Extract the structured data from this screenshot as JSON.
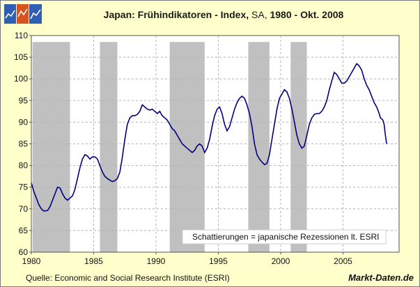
{
  "header": {
    "title_main": "Japan: Frühindikatoren - Index,",
    "title_sa": " SA,",
    "title_rest": " 1980 - Okt. 2008"
  },
  "footer": {
    "source": "Quelle:  Economic and Social Research Institute  (ESRI)",
    "brand": "Markt-Daten.de"
  },
  "colors": {
    "background": "#FFFFCC",
    "plot_background": "#FFFFFF",
    "recession": "#C0C0C0",
    "line": "#000080",
    "grid": "#B4B4B4"
  },
  "chart_data": {
    "type": "line",
    "title": "Japan: Frühindikatoren - Index, SA, 1980 - Okt. 2008",
    "xlabel": "",
    "ylabel": "",
    "xlim": [
      1980,
      2009.5
    ],
    "ylim": [
      60,
      110
    ],
    "x_ticks": [
      1980,
      1985,
      1990,
      1995,
      2000,
      2005
    ],
    "y_ticks": [
      60,
      65,
      70,
      75,
      80,
      85,
      90,
      95,
      100,
      105,
      110
    ],
    "grid": true,
    "annotation": "Schattierungen = japanische Rezessionen lt. ESRI",
    "recessions": [
      {
        "start": 1980.1,
        "end": 1983.1
      },
      {
        "start": 1985.5,
        "end": 1986.9
      },
      {
        "start": 1991.1,
        "end": 1993.9
      },
      {
        "start": 1997.4,
        "end": 1999.1
      },
      {
        "start": 2000.8,
        "end": 2002.1
      }
    ],
    "series": [
      {
        "values": [
          [
            1980.0,
            76.0
          ],
          [
            1980.2,
            74.0
          ],
          [
            1980.4,
            72.5
          ],
          [
            1980.6,
            71.0
          ],
          [
            1980.8,
            70.0
          ],
          [
            1981.0,
            69.5
          ],
          [
            1981.3,
            69.6
          ],
          [
            1981.5,
            70.5
          ],
          [
            1981.7,
            72.0
          ],
          [
            1981.9,
            73.5
          ],
          [
            1982.1,
            75.0
          ],
          [
            1982.3,
            74.8
          ],
          [
            1982.5,
            73.5
          ],
          [
            1982.7,
            72.5
          ],
          [
            1982.9,
            72.0
          ],
          [
            1983.1,
            72.5
          ],
          [
            1983.3,
            73.0
          ],
          [
            1983.5,
            74.5
          ],
          [
            1983.7,
            77.0
          ],
          [
            1983.9,
            79.5
          ],
          [
            1984.1,
            81.5
          ],
          [
            1984.3,
            82.5
          ],
          [
            1984.5,
            82.2
          ],
          [
            1984.7,
            81.5
          ],
          [
            1984.9,
            82.0
          ],
          [
            1985.1,
            82.0
          ],
          [
            1985.3,
            81.5
          ],
          [
            1985.5,
            80.0
          ],
          [
            1985.7,
            78.5
          ],
          [
            1985.9,
            77.5
          ],
          [
            1986.1,
            77.0
          ],
          [
            1986.3,
            76.6
          ],
          [
            1986.5,
            76.3
          ],
          [
            1986.7,
            76.5
          ],
          [
            1986.9,
            77.0
          ],
          [
            1987.1,
            78.5
          ],
          [
            1987.3,
            82.0
          ],
          [
            1987.5,
            86.0
          ],
          [
            1987.7,
            89.5
          ],
          [
            1987.9,
            91.0
          ],
          [
            1988.1,
            91.5
          ],
          [
            1988.3,
            91.5
          ],
          [
            1988.5,
            91.8
          ],
          [
            1988.7,
            92.5
          ],
          [
            1988.9,
            94.0
          ],
          [
            1989.1,
            93.5
          ],
          [
            1989.3,
            93.0
          ],
          [
            1989.5,
            92.8
          ],
          [
            1989.7,
            93.0
          ],
          [
            1989.9,
            92.5
          ],
          [
            1990.1,
            92.0
          ],
          [
            1990.3,
            92.5
          ],
          [
            1990.5,
            91.5
          ],
          [
            1990.7,
            91.0
          ],
          [
            1990.9,
            90.5
          ],
          [
            1991.1,
            89.5
          ],
          [
            1991.3,
            88.5
          ],
          [
            1991.5,
            88.0
          ],
          [
            1991.7,
            87.0
          ],
          [
            1991.9,
            86.0
          ],
          [
            1992.1,
            85.0
          ],
          [
            1992.3,
            84.5
          ],
          [
            1992.5,
            84.0
          ],
          [
            1992.7,
            83.5
          ],
          [
            1992.9,
            83.0
          ],
          [
            1993.1,
            83.5
          ],
          [
            1993.3,
            84.5
          ],
          [
            1993.5,
            85.0
          ],
          [
            1993.7,
            84.5
          ],
          [
            1993.9,
            83.0
          ],
          [
            1994.1,
            84.0
          ],
          [
            1994.3,
            86.0
          ],
          [
            1994.5,
            89.0
          ],
          [
            1994.7,
            91.5
          ],
          [
            1994.9,
            93.0
          ],
          [
            1995.1,
            93.5
          ],
          [
            1995.3,
            92.0
          ],
          [
            1995.5,
            89.5
          ],
          [
            1995.7,
            88.0
          ],
          [
            1995.9,
            89.0
          ],
          [
            1996.1,
            91.0
          ],
          [
            1996.3,
            93.0
          ],
          [
            1996.5,
            94.5
          ],
          [
            1996.7,
            95.5
          ],
          [
            1996.9,
            96.0
          ],
          [
            1997.1,
            95.5
          ],
          [
            1997.3,
            94.0
          ],
          [
            1997.5,
            92.0
          ],
          [
            1997.7,
            89.0
          ],
          [
            1997.9,
            85.0
          ],
          [
            1998.1,
            82.5
          ],
          [
            1998.3,
            81.5
          ],
          [
            1998.5,
            80.8
          ],
          [
            1998.7,
            80.2
          ],
          [
            1998.9,
            80.5
          ],
          [
            1999.1,
            82.5
          ],
          [
            1999.3,
            86.0
          ],
          [
            1999.5,
            89.5
          ],
          [
            1999.7,
            93.0
          ],
          [
            1999.9,
            95.5
          ],
          [
            2000.1,
            96.5
          ],
          [
            2000.3,
            97.5
          ],
          [
            2000.5,
            97.0
          ],
          [
            2000.7,
            95.5
          ],
          [
            2000.9,
            93.0
          ],
          [
            2001.1,
            90.0
          ],
          [
            2001.3,
            87.0
          ],
          [
            2001.5,
            85.0
          ],
          [
            2001.7,
            84.0
          ],
          [
            2001.9,
            84.5
          ],
          [
            2002.1,
            87.0
          ],
          [
            2002.3,
            89.5
          ],
          [
            2002.5,
            91.0
          ],
          [
            2002.7,
            91.8
          ],
          [
            2002.9,
            92.0
          ],
          [
            2003.1,
            92.0
          ],
          [
            2003.3,
            92.5
          ],
          [
            2003.5,
            93.5
          ],
          [
            2003.7,
            95.0
          ],
          [
            2003.9,
            97.5
          ],
          [
            2004.1,
            99.5
          ],
          [
            2004.3,
            101.5
          ],
          [
            2004.5,
            101.0
          ],
          [
            2004.7,
            100.0
          ],
          [
            2004.9,
            99.0
          ],
          [
            2005.1,
            99.0
          ],
          [
            2005.3,
            99.5
          ],
          [
            2005.5,
            100.5
          ],
          [
            2005.7,
            101.5
          ],
          [
            2005.9,
            102.5
          ],
          [
            2006.1,
            103.5
          ],
          [
            2006.3,
            103.0
          ],
          [
            2006.5,
            102.0
          ],
          [
            2006.7,
            100.0
          ],
          [
            2006.9,
            98.5
          ],
          [
            2007.1,
            97.5
          ],
          [
            2007.3,
            96.0
          ],
          [
            2007.5,
            94.5
          ],
          [
            2007.7,
            93.5
          ],
          [
            2007.9,
            92.0
          ],
          [
            2008.0,
            91.0
          ],
          [
            2008.2,
            90.5
          ],
          [
            2008.3,
            89.5
          ],
          [
            2008.4,
            87.0
          ],
          [
            2008.5,
            85.0
          ]
        ]
      }
    ]
  }
}
